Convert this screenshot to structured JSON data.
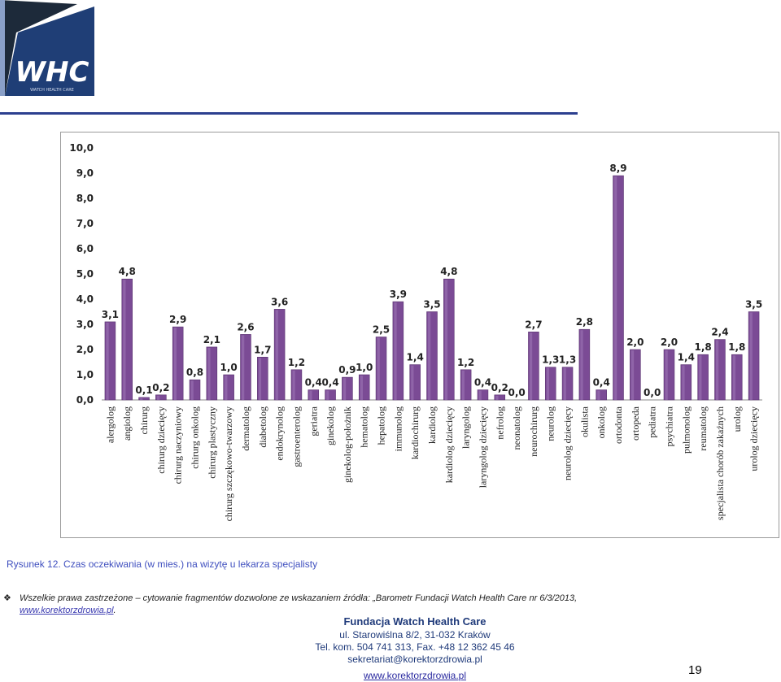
{
  "logo": {
    "text": "WHC",
    "tagline": "WATCH HEALTH CARE"
  },
  "chart_data": {
    "type": "bar",
    "categories": [
      "alergolog",
      "angiolog",
      "chirurg",
      "chirurg dziecięcy",
      "chirurg naczyniowy",
      "chirurg onkolog",
      "chirurg plastyczny",
      "chirurg szczękowo-twarzowy",
      "dermatolog",
      "diabetolog",
      "endokrynolog",
      "gastroenterolog",
      "geriatra",
      "ginekolog",
      "ginekolog-położnik",
      "hematolog",
      "hepatolog",
      "immunolog",
      "kardiochirurg",
      "kardiolog",
      "kardiolog dziecięcy",
      "laryngolog",
      "laryngolog dziecięcy",
      "nefrolog",
      "neonatolog",
      "neurochirurg",
      "neurolog",
      "neurolog dziecięcy",
      "okulista",
      "onkolog",
      "ortodonta",
      "ortopeda",
      "pediatra",
      "psychiatra",
      "pulmonolog",
      "reumatolog",
      "specjalista chorób zakaźnych",
      "urolog",
      "urolog dziecięcy"
    ],
    "values": [
      3.1,
      4.8,
      0.1,
      0.2,
      2.9,
      0.8,
      2.1,
      1.0,
      2.6,
      1.7,
      3.6,
      1.2,
      0.4,
      0.4,
      0.9,
      1.0,
      2.5,
      3.9,
      1.4,
      3.5,
      4.8,
      1.2,
      0.4,
      0.2,
      0.0,
      2.7,
      1.3,
      1.3,
      2.8,
      0.4,
      8.9,
      2.0,
      0.0,
      2.0,
      1.4,
      1.8,
      2.4,
      1.8,
      3.5
    ],
    "value_labels": [
      "3,1",
      "4,8",
      "0,1",
      "0,2",
      "2,9",
      "0,8",
      "2,1",
      "1,0",
      "2,6",
      "1,7",
      "3,6",
      "1,2",
      "0,4",
      "0,4",
      "0,9",
      "1,0",
      "2,5",
      "3,9",
      "1,4",
      "3,5",
      "4,8",
      "1,2",
      "0,4",
      "0,2",
      "0,0",
      "2,7",
      "1,3",
      "1,3",
      "2,8",
      "0,4",
      "8,9",
      "2,0",
      "0,0",
      "2,0",
      "1,4",
      "1,8",
      "2,4",
      "1,8",
      "3,5"
    ],
    "yticks": [
      "0,0",
      "1,0",
      "2,0",
      "3,0",
      "4,0",
      "5,0",
      "6,0",
      "7,0",
      "8,0",
      "9,0",
      "10,0"
    ],
    "ylim": [
      0,
      10
    ],
    "bar_color": "#7b4b95",
    "grid": false
  },
  "caption": "Rysunek 12. Czas oczekiwania (w mies.) na wizytę u lekarza specjalisty",
  "copyright": {
    "text": "Wszelkie prawa zastrzeżone – cytowanie fragmentów dozwolone ze wskazaniem źródła: „Barometr Fundacji Watch Health Care nr 6/3/2013, ",
    "link": "www.korektorzdrowia.pl",
    "suffix": "."
  },
  "foundation": {
    "name": "Fundacja Watch Health Care",
    "address": "ul. Starowiślna 8/2, 31-032 Kraków",
    "phone": "Tel. kom. 504 741 313, Fax. +48 12 362 45 46",
    "email": "sekretariat@korektorzdrowia.pl",
    "website": "www.korektorzdrowia.pl"
  },
  "page_number": "19"
}
